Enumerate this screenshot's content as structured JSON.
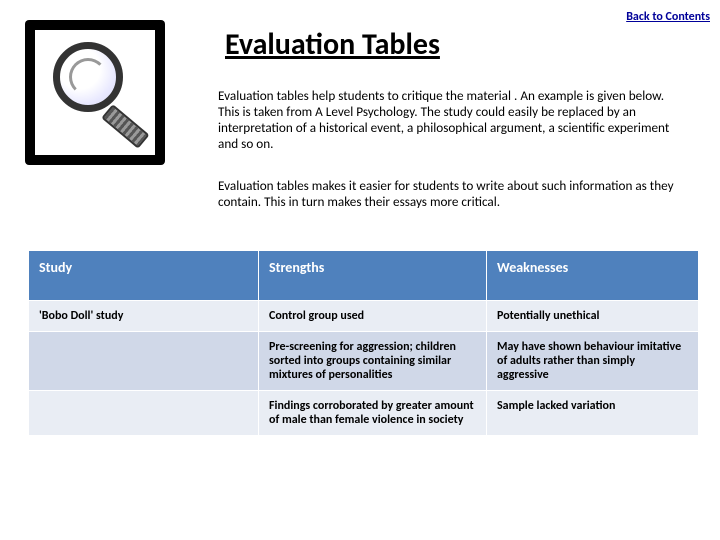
{
  "back_link": "Back to Contents",
  "title": "Evaluation Tables",
  "para1": "Evaluation tables help students to critique the material . An example is given below. This is taken from A Level Psychology. The study could easily be replaced by an interpretation of a historical event, a philosophical argument, a scientific experiment and so on.",
  "para2": "Evaluation tables makes it easier for students to write about such information as they contain. This in turn makes their essays more critical.",
  "table": {
    "headers": {
      "c0": "Study",
      "c1": "Strengths",
      "c2": "Weaknesses"
    },
    "rows": [
      {
        "c0": "'Bobo Doll' study",
        "c1": "Control group used",
        "c2": "Potentially unethical"
      },
      {
        "c0": "",
        "c1": "Pre-screening for aggression; children sorted into groups containing similar mixtures of personalities",
        "c2": "May have shown behaviour imitative of adults rather than simply aggressive"
      },
      {
        "c0": "",
        "c1": "Findings corroborated by greater amount of male than female violence in society",
        "c2": "Sample lacked variation"
      }
    ]
  }
}
